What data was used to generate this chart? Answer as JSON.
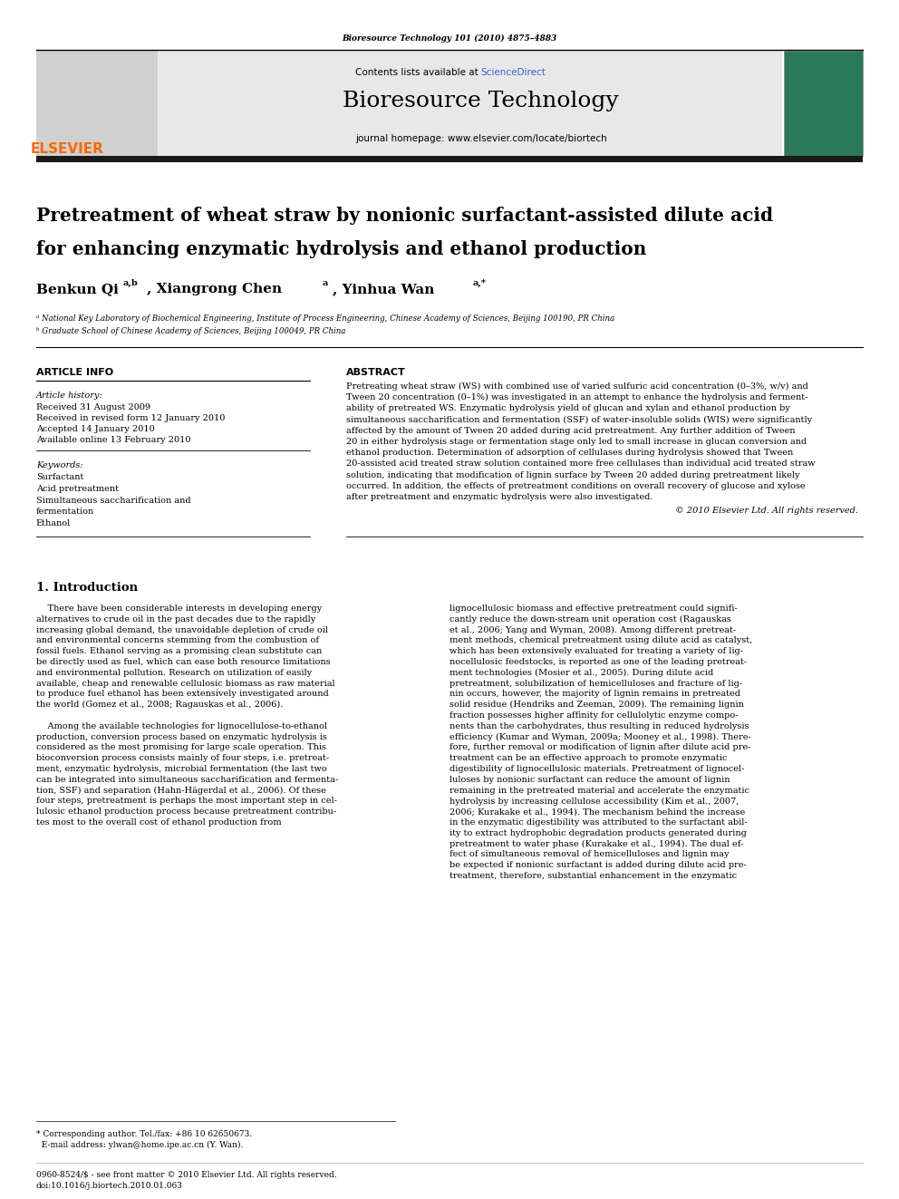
{
  "page_width": 9.92,
  "page_height": 13.23,
  "bg_color": "#ffffff",
  "journal_ref": "Bioresource Technology 101 (2010) 4875–4883",
  "journal_name": "Bioresource Technology",
  "contents_text": "Contents lists available at ScienceDirect",
  "sciencedirect_color": "#3366cc",
  "journal_homepage": "journal homepage: www.elsevier.com/locate/biortech",
  "elsevier_color": "#FF6600",
  "elsevier_text": "ELSEVIER",
  "header_bg": "#e8e8e8",
  "dark_bar_color": "#1a1a1a",
  "article_title_line1": "Pretreatment of wheat straw by nonionic surfactant-assisted dilute acid",
  "article_title_line2": "for enhancing enzymatic hydrolysis and ethanol production",
  "affiliation_a": "ᵃ National Key Laboratory of Biochemical Engineering, Institute of Process Engineering, Chinese Academy of Sciences, Beijing 100190, PR China",
  "affiliation_b": "ᵇ Graduate School of Chinese Academy of Sciences, Beijing 100049, PR China",
  "section_article_info": "ARTICLE INFO",
  "section_abstract": "ABSTRACT",
  "article_history_label": "Article history:",
  "received": "Received 31 August 2009",
  "revised": "Received in revised form 12 January 2010",
  "accepted": "Accepted 14 January 2010",
  "available": "Available online 13 February 2010",
  "keywords_label": "Keywords:",
  "keywords": [
    "Surfactant",
    "Acid pretreatment",
    "Simultaneous saccharification and\nfermentation",
    "Ethanol"
  ],
  "copyright": "© 2010 Elsevier Ltd. All rights reserved.",
  "intro_heading": "1. Introduction",
  "link_color": "#3366cc",
  "abstract_lines": [
    "Pretreating wheat straw (WS) with combined use of varied sulfuric acid concentration (0–3%, w/v) and",
    "Tween 20 concentration (0–1%) was investigated in an attempt to enhance the hydrolysis and ferment-",
    "ability of pretreated WS. Enzymatic hydrolysis yield of glucan and xylan and ethanol production by",
    "simultaneous saccharification and fermentation (SSF) of water-insoluble solids (WIS) were significantly",
    "affected by the amount of Tween 20 added during acid pretreatment. Any further addition of Tween",
    "20 in either hydrolysis stage or fermentation stage only led to small increase in glucan conversion and",
    "ethanol production. Determination of adsorption of cellulases during hydrolysis showed that Tween",
    "20-assisted acid treated straw solution contained more free cellulases than individual acid treated straw",
    "solution, indicating that modification of lignin surface by Tween 20 added during pretreatment likely",
    "occurred. In addition, the effects of pretreatment conditions on overall recovery of glucose and xylose",
    "after pretreatment and enzymatic hydrolysis were also investigated."
  ],
  "intro_col1_lines": [
    "    There have been considerable interests in developing energy",
    "alternatives to crude oil in the past decades due to the rapidly",
    "increasing global demand, the unavoidable depletion of crude oil",
    "and environmental concerns stemming from the combustion of",
    "fossil fuels. Ethanol serving as a promising clean substitute can",
    "be directly used as fuel, which can ease both resource limitations",
    "and environmental pollution. Research on utilization of easily",
    "available, cheap and renewable cellulosic biomass as raw material",
    "to produce fuel ethanol has been extensively investigated around",
    "the world (Gomez et al., 2008; Ragauskas et al., 2006).",
    "",
    "    Among the available technologies for lignocellulose-to-ethanol",
    "production, conversion process based on enzymatic hydrolysis is",
    "considered as the most promising for large scale operation. This",
    "bioconversion process consists mainly of four steps, i.e. pretreat-",
    "ment, enzymatic hydrolysis, microbial fermentation (the last two",
    "can be integrated into simultaneous saccharification and fermenta-",
    "tion, SSF) and separation (Hahn-Hägerdal et al., 2006). Of these",
    "four steps, pretreatment is perhaps the most important step in cel-",
    "lulosic ethanol production process because pretreatment contribu-",
    "tes most to the overall cost of ethanol production from"
  ],
  "intro_col2_lines": [
    "lignocellulosic biomass and effective pretreatment could signifi-",
    "cantly reduce the down-stream unit operation cost (Ragauskas",
    "et al., 2006; Yang and Wyman, 2008). Among different pretreat-",
    "ment methods, chemical pretreatment using dilute acid as catalyst,",
    "which has been extensively evaluated for treating a variety of lig-",
    "nocellulosic feedstocks, is reported as one of the leading pretreat-",
    "ment technologies (Mosier et al., 2005). During dilute acid",
    "pretreatment, solubilization of hemicelluloses and fracture of lig-",
    "nin occurs, however, the majority of lignin remains in pretreated",
    "solid residue (Hendriks and Zeeman, 2009). The remaining lignin",
    "fraction possesses higher affinity for cellulolytic enzyme compo-",
    "nents than the carbohydrates, thus resulting in reduced hydrolysis",
    "efficiency (Kumar and Wyman, 2009a; Mooney et al., 1998). There-",
    "fore, further removal or modification of lignin after dilute acid pre-",
    "treatment can be an effective approach to promote enzymatic",
    "digestibility of lignocellulosic materials. Pretreatment of lignocel-",
    "luloses by nonionic surfactant can reduce the amount of lignin",
    "remaining in the pretreated material and accelerate the enzymatic",
    "hydrolysis by increasing cellulose accessibility (Kim et al., 2007,",
    "2006; Kurakake et al., 1994). The mechanism behind the increase",
    "in the enzymatic digestibility was attributed to the surfactant abil-",
    "ity to extract hydrophobic degradation products generated during",
    "pretreatment to water phase (Kurakake et al., 1994). The dual ef-",
    "fect of simultaneous removal of hemicelluloses and lignin may",
    "be expected if nonionic surfactant is added during dilute acid pre-",
    "treatment, therefore, substantial enhancement in the enzymatic"
  ],
  "footnote_line1": "* Corresponding author. Tel./fax: +86 10 62650673.",
  "footnote_line2": "  E-mail address: ylwan@home.ipe.ac.cn (Y. Wan).",
  "footer_line1": "0960-8524/$ - see front matter © 2010 Elsevier Ltd. All rights reserved.",
  "footer_line2": "doi:10.1016/j.biortech.2010.01.063"
}
